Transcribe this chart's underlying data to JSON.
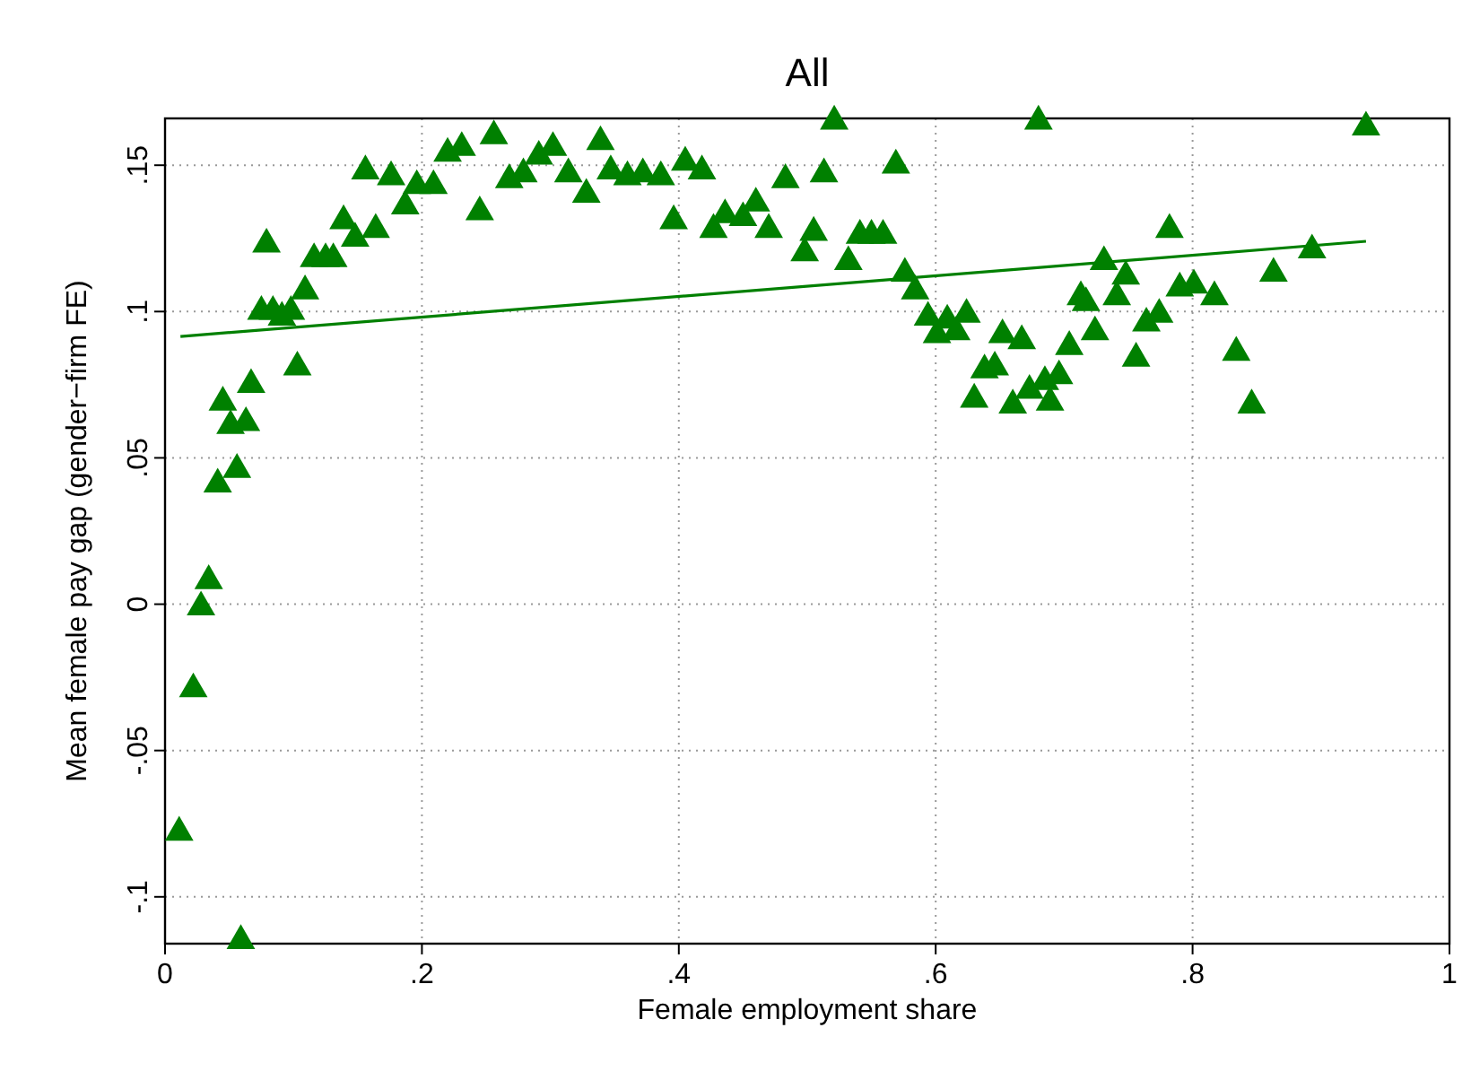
{
  "chart_data": {
    "type": "scatter",
    "title": "All",
    "xlabel": "Female employment share",
    "ylabel": "Mean female pay gap (gender−firm FE)",
    "xlim": [
      0,
      1
    ],
    "ylim": [
      -0.116,
      0.166
    ],
    "xticks": [
      0,
      {
        "value": 0.2,
        "label": ".2"
      },
      {
        "value": 0.4,
        "label": ".4"
      },
      {
        "value": 0.6,
        "label": ".6"
      },
      {
        "value": 0.8,
        "label": ".8"
      },
      1
    ],
    "yticks": [
      {
        "value": -0.1,
        "label": "-.1"
      },
      {
        "value": -0.05,
        "label": "-.05"
      },
      0,
      {
        "value": 0.05,
        "label": ".05"
      },
      {
        "value": 0.1,
        "label": ".1"
      },
      {
        "value": 0.15,
        "label": ".15"
      }
    ],
    "grid": true,
    "marker": "triangle",
    "series": [
      {
        "color": "#008000",
        "x": [
          0.011,
          0.022,
          0.028,
          0.034,
          0.041,
          0.045,
          0.051,
          0.056,
          0.059,
          0.063,
          0.067,
          0.079,
          0.075,
          0.084,
          0.091,
          0.098,
          0.103,
          0.109,
          0.116,
          0.125,
          0.131,
          0.139,
          0.148,
          0.156,
          0.164,
          0.176,
          0.187,
          0.196,
          0.209,
          0.22,
          0.231,
          0.245,
          0.256,
          0.268,
          0.279,
          0.291,
          0.302,
          0.314,
          0.328,
          0.339,
          0.347,
          0.36,
          0.372,
          0.386,
          0.396,
          0.405,
          0.418,
          0.427,
          0.436,
          0.45,
          0.46,
          0.47,
          0.483,
          0.498,
          0.505,
          0.513,
          0.521,
          0.532,
          0.541,
          0.55,
          0.559,
          0.569,
          0.576,
          0.584,
          0.594,
          0.601,
          0.609,
          0.616,
          0.624,
          0.63,
          0.638,
          0.646,
          0.652,
          0.66,
          0.667,
          0.673,
          0.68,
          0.685,
          0.689,
          0.696,
          0.704,
          0.713,
          0.717,
          0.724,
          0.731,
          0.741,
          0.748,
          0.756,
          0.764,
          0.774,
          0.782,
          0.79,
          0.801,
          0.817,
          0.834,
          0.846,
          0.863,
          0.893,
          0.935
        ],
        "values": [
          -0.078,
          -0.029,
          -0.001,
          0.008,
          0.041,
          0.069,
          0.061,
          0.046,
          -0.115,
          0.062,
          0.075,
          0.123,
          0.1,
          0.1,
          0.098,
          0.1,
          0.081,
          0.107,
          0.118,
          0.118,
          0.118,
          0.131,
          0.125,
          0.148,
          0.128,
          0.146,
          0.136,
          0.143,
          0.143,
          0.154,
          0.156,
          0.134,
          0.16,
          0.145,
          0.147,
          0.153,
          0.156,
          0.147,
          0.14,
          0.158,
          0.148,
          0.146,
          0.147,
          0.146,
          0.131,
          0.151,
          0.148,
          0.128,
          0.133,
          0.132,
          0.137,
          0.128,
          0.145,
          0.12,
          0.127,
          0.147,
          0.165,
          0.117,
          0.126,
          0.126,
          0.126,
          0.15,
          0.113,
          0.107,
          0.098,
          0.092,
          0.097,
          0.093,
          0.099,
          0.07,
          0.08,
          0.081,
          0.092,
          0.068,
          0.09,
          0.073,
          0.165,
          0.076,
          0.069,
          0.078,
          0.088,
          0.105,
          0.103,
          0.093,
          0.117,
          0.105,
          0.112,
          0.084,
          0.096,
          0.099,
          0.128,
          0.108,
          0.109,
          0.105,
          0.086,
          0.068,
          0.113,
          0.121,
          0.163
        ]
      },
      {
        "type": "line",
        "color": "#008000",
        "marker": "none",
        "x": [
          0.012,
          0.935
        ],
        "values": [
          0.0915,
          0.124
        ]
      }
    ]
  }
}
